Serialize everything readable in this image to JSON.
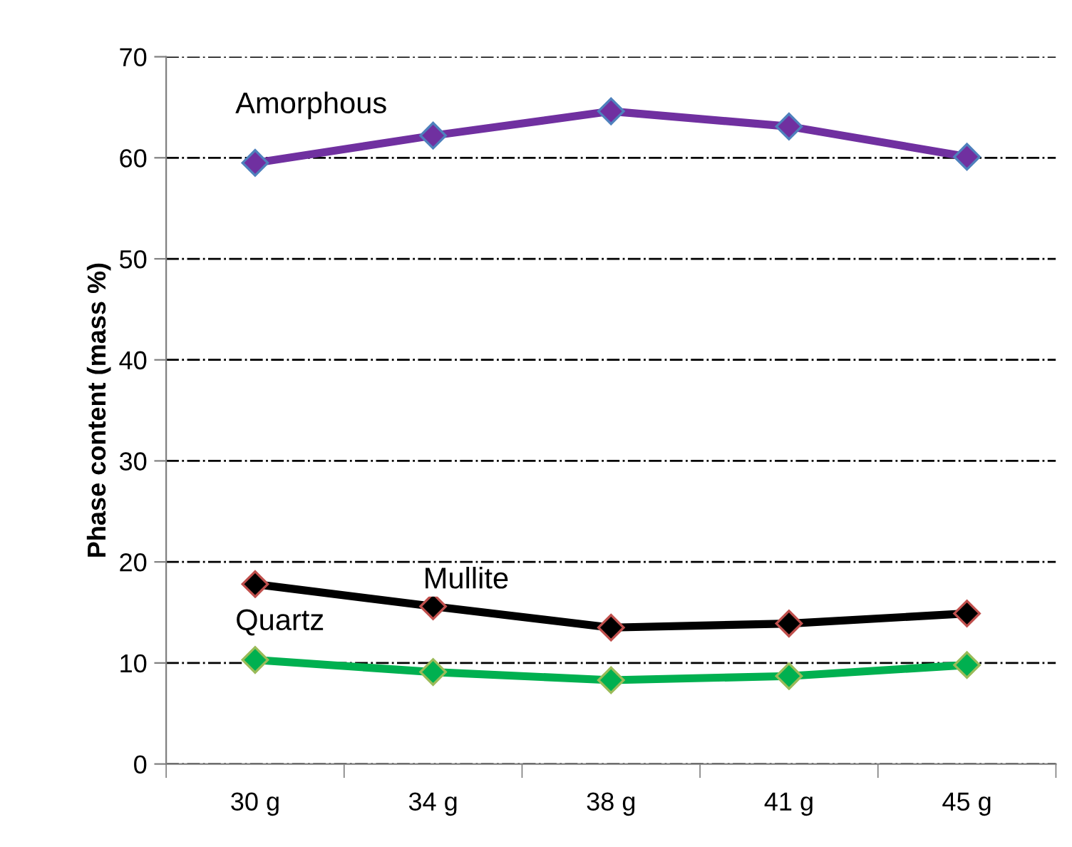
{
  "chart_data": {
    "type": "line",
    "ylabel": "Phase content (mass %)",
    "categories": [
      "30 g",
      "34 g",
      "38 g",
      "41 g",
      "45 g"
    ],
    "series": [
      {
        "name": "Amorphous",
        "color": "#7030a0",
        "values": [
          59.5,
          62.2,
          64.6,
          63.1,
          60.1
        ]
      },
      {
        "name": "Mullite",
        "color": "#000000",
        "values": [
          17.8,
          15.6,
          13.5,
          13.9,
          14.9
        ]
      },
      {
        "name": "Quartz",
        "color": "#00b050",
        "values": [
          10.3,
          9.1,
          8.3,
          8.7,
          9.8
        ]
      }
    ],
    "ylim": [
      0,
      70
    ],
    "yticks": [
      0,
      10,
      20,
      30,
      40,
      50,
      60,
      70
    ],
    "grid": "y",
    "marker": "diamond",
    "line_style": "solid",
    "legend": false
  }
}
